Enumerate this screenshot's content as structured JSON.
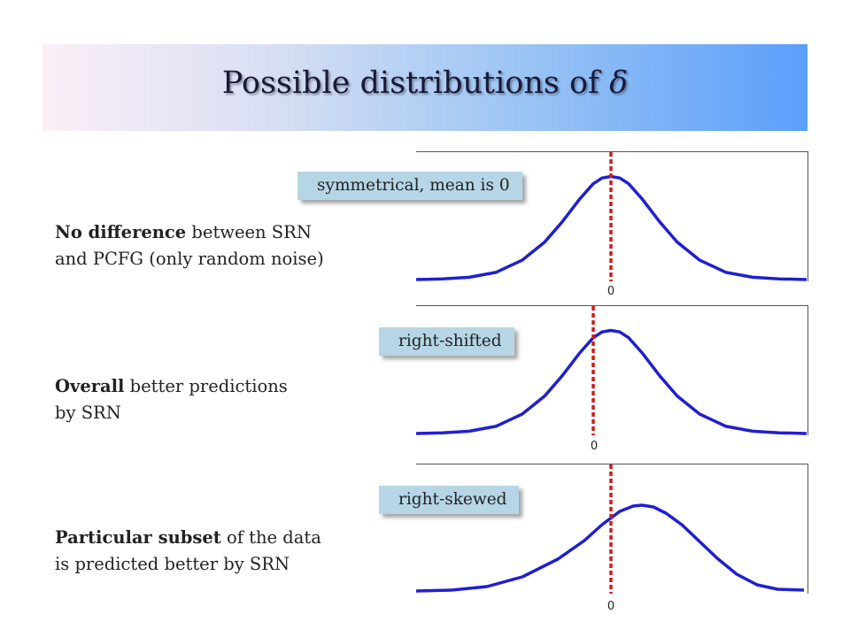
{
  "title": {
    "prefix": "Possible distributions of ",
    "symbol": "δ"
  },
  "colors": {
    "curve": "#1f1fd1",
    "mean_line": "#d11a1a",
    "label_bg": "#b6d6e6"
  },
  "panels": [
    {
      "bold": "No difference",
      "text_rest": " between SRN",
      "text_line2": "and PCFG (only random noise)",
      "label": "symmetrical, mean is 0",
      "zero_label": "0"
    },
    {
      "bold": "Overall",
      "text_rest": " better predictions",
      "text_line2": "by SRN",
      "label": "right-shifted",
      "zero_label": "0"
    },
    {
      "bold": "Particular subset",
      "text_rest": " of the data",
      "text_line2": "is predicted better by SRN",
      "label": "right-skewed",
      "zero_label": "0"
    }
  ]
}
